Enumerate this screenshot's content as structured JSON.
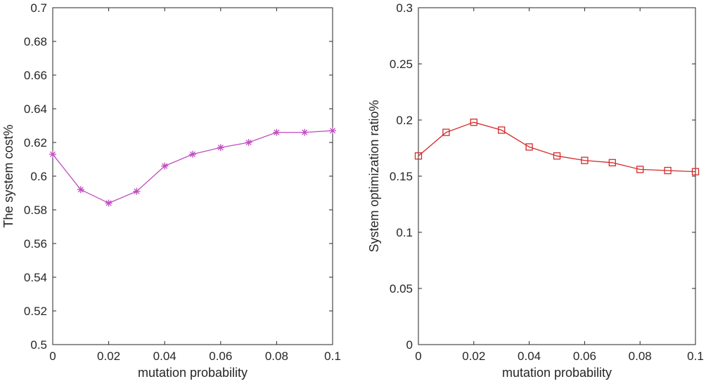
{
  "chart_data": [
    {
      "type": "line",
      "title": "",
      "xlabel": "mutation probability",
      "ylabel": "The system cost%",
      "xlim": [
        0,
        0.1
      ],
      "ylim": [
        0.5,
        0.7
      ],
      "xticks": [
        "0",
        "0.02",
        "0.04",
        "0.06",
        "0.08",
        "0.1"
      ],
      "yticks": [
        "0.5",
        "0.52",
        "0.54",
        "0.56",
        "0.58",
        "0.6",
        "0.62",
        "0.64",
        "0.66",
        "0.68",
        "0.7"
      ],
      "grid": false,
      "series": [
        {
          "name": "The system cost%",
          "color": "#c04ec0",
          "marker": "asterisk",
          "x": [
            0,
            0.01,
            0.02,
            0.03,
            0.04,
            0.05,
            0.06,
            0.07,
            0.08,
            0.09,
            0.1
          ],
          "values": [
            0.613,
            0.592,
            0.584,
            0.591,
            0.606,
            0.613,
            0.617,
            0.62,
            0.626,
            0.626,
            0.627
          ]
        }
      ]
    },
    {
      "type": "line",
      "title": "",
      "xlabel": "mutation probability",
      "ylabel": "System optimization ratio%",
      "xlim": [
        0,
        0.1
      ],
      "ylim": [
        0,
        0.3
      ],
      "xticks": [
        "0",
        "0.02",
        "0.04",
        "0.06",
        "0.08",
        "0.1"
      ],
      "yticks": [
        "0",
        "0.05",
        "0.1",
        "0.15",
        "0.2",
        "0.25",
        "0.3"
      ],
      "grid": false,
      "series": [
        {
          "name": "System optimization ratio%",
          "color": "#d42a2a",
          "marker": "square",
          "x": [
            0,
            0.01,
            0.02,
            0.03,
            0.04,
            0.05,
            0.06,
            0.07,
            0.08,
            0.09,
            0.1
          ],
          "values": [
            0.168,
            0.189,
            0.198,
            0.191,
            0.176,
            0.168,
            0.164,
            0.162,
            0.156,
            0.155,
            0.154
          ]
        }
      ]
    }
  ]
}
